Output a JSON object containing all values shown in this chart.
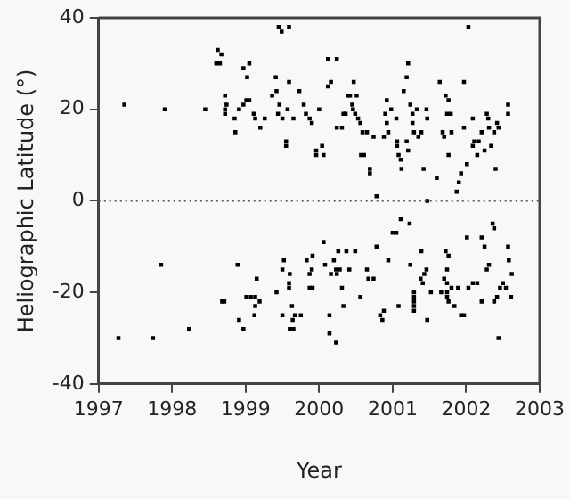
{
  "chart_data": {
    "type": "scatter",
    "xlabel": "Year",
    "ylabel": "Heliographic Latitude (°)",
    "color": "#000000",
    "marker": "square",
    "xlim": [
      1997,
      2003
    ],
    "xticks": [
      1997,
      1998,
      1999,
      2000,
      2001,
      2002,
      2003
    ],
    "ylim": [
      -40,
      40
    ],
    "yticks": [
      -40,
      -20,
      0,
      20,
      40
    ],
    "ref_lines": [
      {
        "axis": "y",
        "value": 0,
        "line_style": "dotted",
        "color": "#555555"
      }
    ],
    "x": [
      1997.35,
      1997.9,
      1998.45,
      1998.62,
      1998.67,
      1998.6,
      1998.65,
      1998.72,
      1998.74,
      1998.72,
      1998.72,
      1998.85,
      1998.86,
      1998.91,
      1998.97,
      1999.05,
      1999.02,
      1999.01,
      1999.05,
      1998.97,
      1999.11,
      1999.13,
      1999.2,
      1999.26,
      1999.36,
      1999.41,
      1999.42,
      1999.44,
      1999.46,
      1999.5,
      1999.55,
      1999.55,
      1999.59,
      1999.57,
      1999.65,
      1999.73,
      1999.79,
      1999.82,
      1999.87,
      1999.9,
      1999.96,
      1999.96,
      2000.0,
      2000.04,
      2000.06,
      2000.12,
      2000.12,
      2000.24,
      2000.16,
      2000.24,
      2000.31,
      2000.33,
      2000.36,
      2000.39,
      2000.42,
      2000.45,
      2000.46,
      2000.47,
      2000.49,
      2000.51,
      2000.53,
      2000.56,
      2000.59,
      2000.57,
      2000.61,
      2000.65,
      2000.69,
      2000.69,
      2000.74,
      2000.78,
      2000.88,
      2000.92,
      2000.9,
      2000.92,
      2000.94,
      2000.98,
      2001.05,
      2001.06,
      2001.06,
      2001.08,
      2001.11,
      2001.12,
      2001.15,
      2001.19,
      2001.21,
      2001.19,
      2001.21,
      2001.24,
      2001.27,
      2001.27,
      2001.29,
      2001.33,
      2001.35,
      2001.39,
      2001.42,
      2001.46,
      2001.47,
      2001.47,
      2001.6,
      2001.64,
      2001.68,
      2001.7,
      2001.72,
      2001.74,
      2001.76,
      2001.79,
      2001.76,
      2001.8,
      2001.87,
      2001.9,
      2001.93,
      2001.97,
      2001.97,
      2002.01,
      2002.03,
      2002.09,
      2002.09,
      2002.11,
      2002.15,
      2002.17,
      2002.21,
      2002.25,
      2002.28,
      2002.3,
      2002.31,
      2002.34,
      2002.38,
      2002.4,
      2002.42,
      2002.44,
      2002.57,
      2002.57,
      1999.45,
      1999.49,
      1999.59,
      1997.27,
      1997.74,
      1997.85,
      1998.23,
      1998.68,
      1998.71,
      1998.89,
      1998.91,
      1998.97,
      1999.01,
      1999.07,
      1999.12,
      1999.13,
      1999.13,
      1999.15,
      1999.19,
      1999.42,
      1999.5,
      1999.52,
      1999.5,
      1999.59,
      1999.6,
      1999.59,
      1999.63,
      1999.64,
      1999.67,
      1999.6,
      1999.65,
      1999.75,
      1999.83,
      1999.87,
      1999.9,
      1999.87,
      1999.91,
      1999.91,
      2000.06,
      2000.08,
      2000.14,
      2000.14,
      2000.23,
      2000.16,
      2000.2,
      2000.23,
      2000.24,
      2000.26,
      2000.28,
      2000.31,
      2000.33,
      2000.37,
      2000.41,
      2000.49,
      2000.56,
      2000.65,
      2000.67,
      2000.74,
      2000.78,
      2000.83,
      2000.86,
      2000.88,
      2000.94,
      2001.05,
      2001.11,
      2001.08,
      2001.0,
      2001.23,
      2001.24,
      2001.29,
      2001.29,
      2001.29,
      2001.29,
      2001.29,
      2001.38,
      2001.39,
      2001.41,
      2001.43,
      2001.46,
      2001.47,
      2001.52,
      2001.66,
      2001.7,
      2001.72,
      2001.74,
      2001.74,
      2001.74,
      2001.74,
      2001.76,
      2001.76,
      2001.8,
      2001.84,
      2001.89,
      2001.93,
      2001.97,
      2002.01,
      2002.03,
      2002.09,
      2002.15,
      2002.21,
      2002.21,
      2002.25,
      2002.28,
      2002.31,
      2002.36,
      2002.38,
      2002.38,
      2002.42,
      2002.44,
      2002.46,
      2002.5,
      2002.54,
      2002.57,
      2002.58,
      2002.61,
      2002.62
    ],
    "values": [
      21,
      20,
      20,
      33,
      32,
      30,
      30,
      23,
      21,
      20,
      19,
      18,
      15,
      20,
      29,
      30,
      27,
      22,
      22,
      21,
      19,
      18,
      16,
      18,
      23,
      27,
      24,
      19,
      21,
      18,
      13,
      12,
      26,
      20,
      18,
      24,
      21,
      19,
      18,
      17,
      11,
      10,
      20,
      12,
      10,
      25,
      31,
      31,
      26,
      16,
      16,
      19,
      19,
      23,
      23,
      21,
      20,
      26,
      19,
      23,
      18,
      17,
      15,
      10,
      10,
      15,
      7,
      6,
      14,
      1,
      14,
      22,
      19,
      17,
      15,
      20,
      18,
      13,
      12,
      10,
      9,
      7,
      24,
      27,
      30,
      13,
      11,
      21,
      19,
      17,
      15,
      20,
      14,
      15,
      7,
      20,
      18,
      0,
      5,
      26,
      15,
      14,
      23,
      19,
      22,
      19,
      10,
      15,
      2,
      4,
      6,
      26,
      16,
      8,
      38,
      12,
      18,
      13,
      10,
      13,
      15,
      11,
      19,
      18,
      16,
      12,
      15,
      7,
      17,
      16,
      21,
      19,
      38,
      37,
      38,
      -30,
      -30,
      -14,
      -28,
      -22,
      -22,
      -14,
      -26,
      -28,
      -21,
      -21,
      -25,
      -23,
      -21,
      -17,
      -22,
      -20,
      -15,
      -13,
      -25,
      -18,
      -16,
      -19,
      -23,
      -26,
      -25,
      -28,
      -28,
      -25,
      -13,
      -16,
      -15,
      -19,
      -19,
      -12,
      -9,
      -14,
      -25,
      -29,
      -31,
      -16,
      -13,
      -15,
      -16,
      -11,
      -15,
      -19,
      -23,
      -11,
      -15,
      -11,
      -21,
      -15,
      -17,
      -17,
      -10,
      -25,
      -26,
      -24,
      -13,
      -7,
      -4,
      -23,
      -7,
      -5,
      -14,
      -20,
      -21,
      -22,
      -23,
      -24,
      -17,
      -11,
      -18,
      -16,
      -15,
      -26,
      -20,
      -20,
      -17,
      -11,
      -18,
      -15,
      -20,
      -21,
      -22,
      -12,
      -19,
      -23,
      -19,
      -25,
      -25,
      -8,
      -19,
      -18,
      -18,
      -22,
      -8,
      -10,
      -15,
      -14,
      -5,
      -6,
      -22,
      -21,
      -30,
      -19,
      -18,
      -19,
      -10,
      -13,
      -21,
      -16
    ]
  }
}
